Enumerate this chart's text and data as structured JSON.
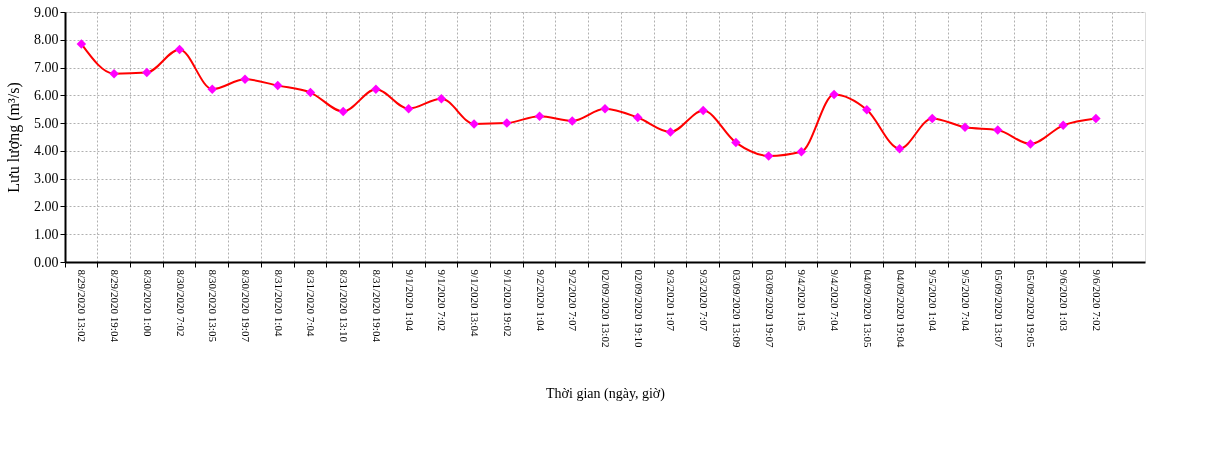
{
  "chart_data": {
    "type": "line",
    "xlabel": "Thời gian (ngày, giờ)",
    "ylabel": "Lưu lượng (m³/s)",
    "categories": [
      "8/29/2020 13:02",
      "8/29/2020 19:04",
      "8/30/2020 1:00",
      "8/30/2020 7:02",
      "8/30/2020 13:05",
      "8/30/2020 19:07",
      "8/31/2020 1:04",
      "8/31/2020 7:04",
      "8/31/2020 13:10",
      "8/31/2020 19:04",
      "9/1/2020 1:04",
      "9/1/2020 7:02",
      "9/1/2020 13:04",
      "9/1/2020 19:02",
      "9/2/2020 1:04",
      "9/2/2020 7:07",
      "02/09/2020 13:02",
      "02/09/2020 19:10",
      "9/3/2020 1:07",
      "9/3/2020 7:07",
      "03/09/2020 13:09",
      "03/09/2020 19:07",
      "9/4/2020 1:05",
      "9/4/2020 7:04",
      "04/09/2020 13:05",
      "04/09/2020 19:04",
      "9/5/2020 1:04",
      "9/5/2020 7:04",
      "05/09/2020 13:07",
      "05/09/2020 19:05",
      "9/6/2020 1:03",
      "9/6/2020 7:02",
      null
    ],
    "series": [
      {
        "color": "#ff0000",
        "values": [
          7.85,
          6.78,
          6.82,
          7.65,
          6.22,
          6.58,
          6.35,
          6.1,
          5.42,
          6.22,
          5.52,
          5.88,
          4.97,
          5.0,
          5.25,
          5.08,
          5.52,
          5.2,
          4.68,
          5.45,
          4.3,
          3.82,
          3.97,
          6.03,
          5.48,
          4.08,
          5.17,
          4.85,
          4.75,
          4.25,
          4.92,
          5.17,
          null
        ]
      }
    ],
    "ylim": [
      0,
      9
    ],
    "yticks": [
      {
        "value": 0,
        "label": "0.00"
      },
      {
        "value": 1,
        "label": "1.00"
      },
      {
        "value": 2,
        "label": "2.00"
      },
      {
        "value": 3,
        "label": "3.00"
      },
      {
        "value": 4,
        "label": "4.00"
      },
      {
        "value": 5,
        "label": "5.00"
      },
      {
        "value": 6,
        "label": "6.00"
      },
      {
        "value": 7,
        "label": "7.00"
      },
      {
        "value": 8,
        "label": "8.00"
      },
      {
        "value": 9,
        "label": "9.00"
      }
    ],
    "grid": true,
    "marker": "diamond",
    "line_style": "solid"
  }
}
